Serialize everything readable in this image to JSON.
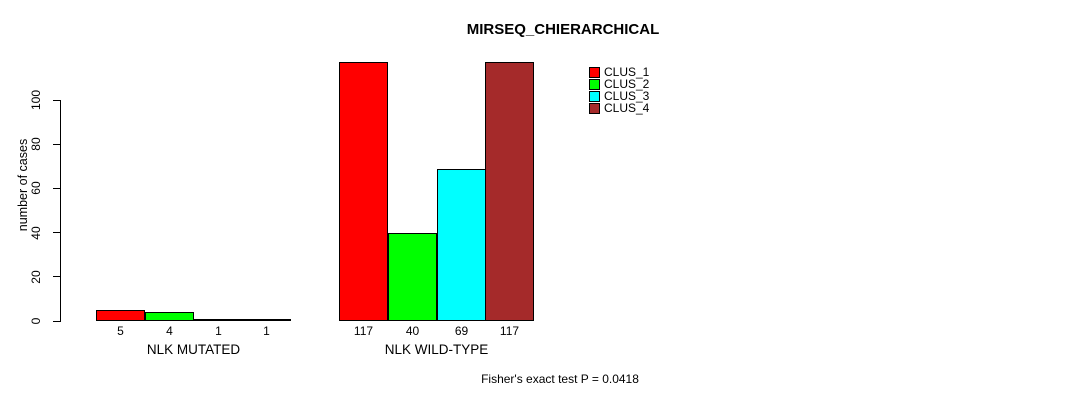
{
  "chart_data": {
    "type": "bar",
    "title": "MIRSEQ_CHIERARCHICAL",
    "ylabel": "number of cases",
    "xlabel": "",
    "ylim": [
      0,
      100
    ],
    "yticks": [
      0,
      20,
      40,
      60,
      80,
      100
    ],
    "categories": [
      "NLK MUTATED",
      "NLK WILD-TYPE"
    ],
    "series": [
      {
        "name": "CLUS_1",
        "color": "#FF0000",
        "values": [
          5,
          117
        ]
      },
      {
        "name": "CLUS_2",
        "color": "#00FF00",
        "values": [
          4,
          40
        ]
      },
      {
        "name": "CLUS_3",
        "color": "#00FFFF",
        "values": [
          1,
          69
        ]
      },
      {
        "name": "CLUS_4",
        "color": "#A52A2A",
        "values": [
          1,
          117
        ]
      }
    ],
    "bar_value_labels": [
      [
        5,
        4,
        1,
        1
      ],
      [
        117,
        40,
        69,
        117
      ]
    ],
    "legend_position": "top-right",
    "grid": false,
    "annotation": "Fisher's exact test P = 0.0418"
  }
}
